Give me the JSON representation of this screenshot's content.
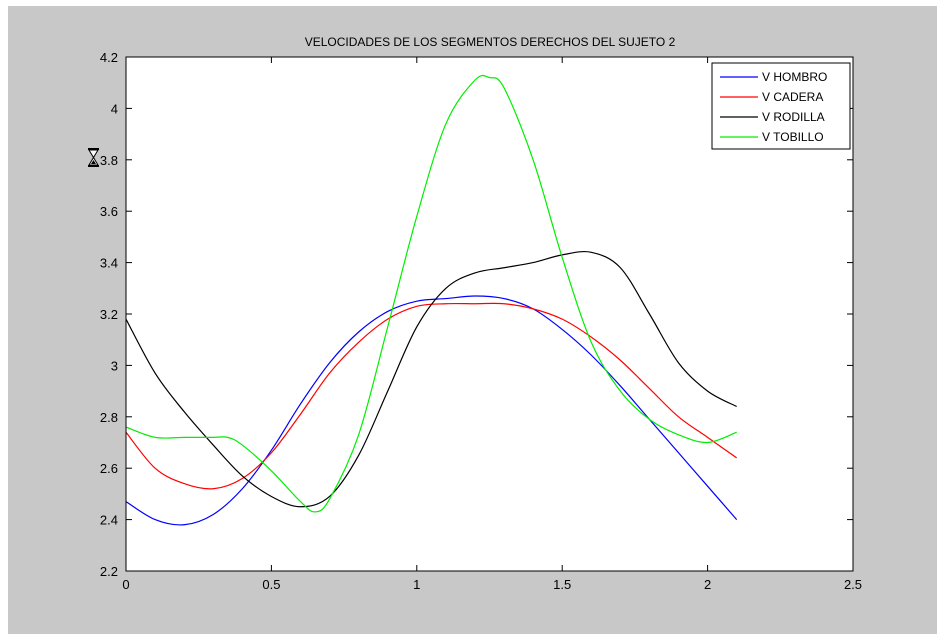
{
  "chart_data": {
    "type": "line",
    "title": "VELOCIDADES DE LOS SEGMENTOS DERECHOS DEL SUJETO 2",
    "xlabel": "",
    "ylabel": "",
    "xlim": [
      0,
      2.5
    ],
    "ylim": [
      2.2,
      4.2
    ],
    "xticks": [
      0,
      0.5,
      1,
      1.5,
      2,
      2.5
    ],
    "xtick_labels": [
      "0",
      "0.5",
      "1",
      "1.5",
      "2",
      "2.5"
    ],
    "yticks": [
      2.2,
      2.4,
      2.6,
      2.8,
      3,
      3.2,
      3.4,
      3.6,
      3.8,
      4,
      4.2
    ],
    "ytick_labels": [
      "2.2",
      "2.4",
      "2.6",
      "2.8",
      "3",
      "3.2",
      "3.4",
      "3.6",
      "3.8",
      "4",
      "4.2"
    ],
    "grid": false,
    "legend_position": "top-right",
    "series": [
      {
        "name": "V HOMBRO",
        "color": "#0000ff",
        "x": [
          0,
          0.1,
          0.2,
          0.3,
          0.4,
          0.5,
          0.6,
          0.7,
          0.8,
          0.9,
          1.0,
          1.1,
          1.2,
          1.3,
          1.4,
          1.5,
          1.6,
          1.7,
          1.8,
          1.9,
          2.0,
          2.1
        ],
        "y": [
          2.47,
          2.4,
          2.38,
          2.42,
          2.52,
          2.67,
          2.85,
          3.01,
          3.13,
          3.21,
          3.25,
          3.26,
          3.27,
          3.26,
          3.22,
          3.14,
          3.04,
          2.92,
          2.79,
          2.66,
          2.53,
          2.4
        ]
      },
      {
        "name": "V CADERA",
        "color": "#ff0000",
        "x": [
          0,
          0.1,
          0.2,
          0.3,
          0.4,
          0.5,
          0.6,
          0.7,
          0.8,
          0.9,
          1.0,
          1.1,
          1.2,
          1.3,
          1.4,
          1.5,
          1.6,
          1.7,
          1.8,
          1.9,
          2.0,
          2.1
        ],
        "y": [
          2.74,
          2.6,
          2.54,
          2.52,
          2.56,
          2.66,
          2.81,
          2.97,
          3.09,
          3.18,
          3.23,
          3.24,
          3.24,
          3.24,
          3.22,
          3.18,
          3.11,
          3.02,
          2.91,
          2.8,
          2.72,
          2.64
        ]
      },
      {
        "name": "V RODILLA",
        "color": "#000000",
        "x": [
          0,
          0.1,
          0.2,
          0.3,
          0.4,
          0.5,
          0.6,
          0.7,
          0.8,
          0.9,
          1.0,
          1.1,
          1.2,
          1.3,
          1.4,
          1.5,
          1.6,
          1.7,
          1.8,
          1.9,
          2.0,
          2.1
        ],
        "y": [
          3.18,
          2.97,
          2.82,
          2.69,
          2.57,
          2.49,
          2.45,
          2.49,
          2.65,
          2.9,
          3.15,
          3.3,
          3.36,
          3.38,
          3.4,
          3.43,
          3.44,
          3.38,
          3.2,
          3.01,
          2.9,
          2.84
        ]
      },
      {
        "name": "V TOBILLO",
        "color": "#00ee00",
        "x": [
          0,
          0.1,
          0.2,
          0.3,
          0.35,
          0.4,
          0.5,
          0.6,
          0.65,
          0.7,
          0.8,
          0.9,
          1.0,
          1.1,
          1.2,
          1.25,
          1.3,
          1.4,
          1.5,
          1.6,
          1.7,
          1.8,
          1.9,
          2.0,
          2.1
        ],
        "y": [
          2.76,
          2.72,
          2.72,
          2.72,
          2.72,
          2.69,
          2.59,
          2.47,
          2.43,
          2.48,
          2.73,
          3.15,
          3.58,
          3.94,
          4.11,
          4.12,
          4.08,
          3.8,
          3.42,
          3.09,
          2.9,
          2.79,
          2.73,
          2.7,
          2.74
        ]
      }
    ]
  }
}
